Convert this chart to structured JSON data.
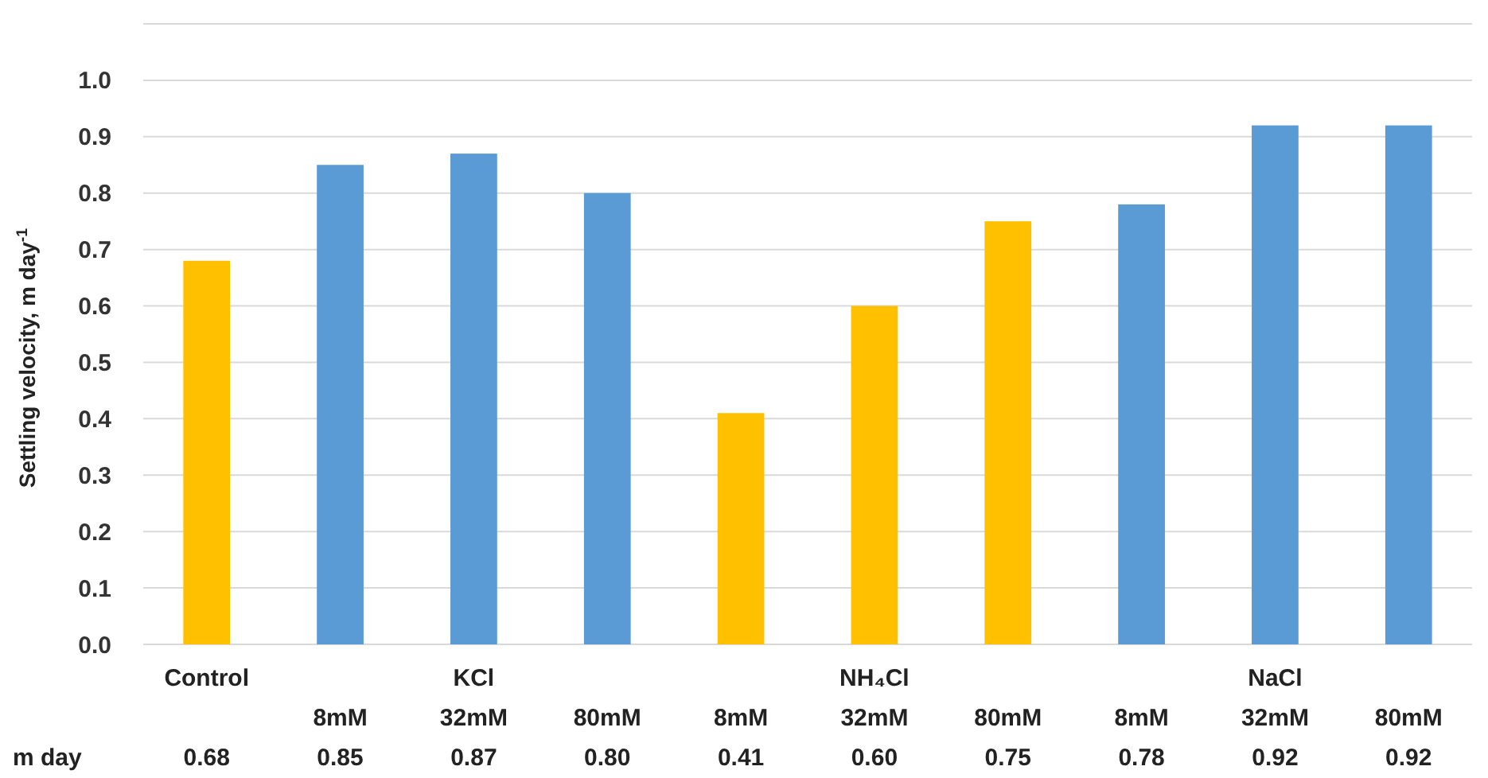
{
  "chart_data": {
    "type": "bar",
    "ylabel": "Settling velocity, m day$^{-1}$",
    "categories": [
      "Control",
      "\n8mM",
      "KCl\n32mM",
      "\n80mM",
      "\n8mM",
      "NH₄Cl\n32mM",
      "\n80mM",
      "\n8mM",
      "NaCl\n32mM",
      "\n80mM"
    ],
    "values": [
      0.68,
      0.85,
      0.87,
      0.8,
      0.41,
      0.6,
      0.75,
      0.78,
      0.92,
      0.92
    ],
    "colors": [
      "#ffc000",
      "#5b9bd5",
      "#5b9bd5",
      "#5b9bd5",
      "#ffc000",
      "#ffc000",
      "#ffc000",
      "#5b9bd5",
      "#5b9bd5",
      "#5b9bd5"
    ],
    "ylim": [
      0,
      1.1
    ],
    "yticks": [
      "0.0",
      0.1,
      0.2,
      0.3,
      0.4,
      0.5,
      0.6,
      0.7,
      0.8,
      0.9,
      "1.0",
      {
        "value": 1.1,
        "label": null
      }
    ],
    "grid": "y",
    "data_labels": true,
    "value_labels": [
      "0.68",
      "0.85",
      "0.87",
      "0.80",
      "0.41",
      "0.60",
      "0.75",
      "0.78",
      "0.92",
      "0.92"
    ],
    "annotations": [
      "m day"
    ]
  }
}
